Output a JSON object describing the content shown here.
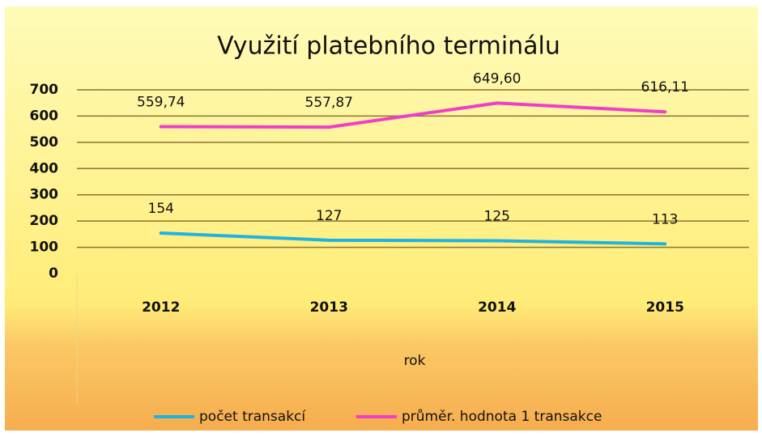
{
  "chart_data": {
    "type": "line",
    "title": "Využití platebního terminálu",
    "x_label": "rok",
    "categories": [
      "2012",
      "2013",
      "2014",
      "2015"
    ],
    "series": [
      {
        "name": "počet transakcí",
        "color": "#1fb4e0",
        "values": [
          154,
          127,
          125,
          113
        ]
      },
      {
        "name": "průměr. hodnota 1 transakce",
        "color": "#f03ec8",
        "values": [
          559.74,
          557.87,
          649.6,
          616.11
        ],
        "value_labels": [
          "559,74",
          "557,87",
          "649,60",
          "616,11"
        ]
      }
    ],
    "ylim": [
      0,
      700
    ],
    "yticks": [
      0,
      100,
      200,
      300,
      400,
      500,
      600,
      700
    ],
    "grid": true,
    "legend": "bottom"
  }
}
